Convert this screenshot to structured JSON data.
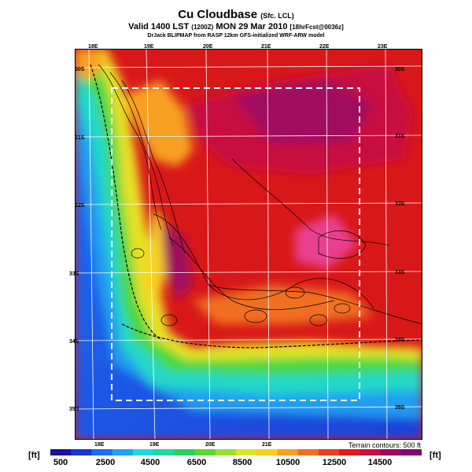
{
  "header": {
    "title": "Cu Cloudbase",
    "title_suffix": "(Sfc. LCL)",
    "valid_line": "Valid 1400 LST",
    "valid_code": "(1200Z)",
    "valid_date": "MON 29 Mar 2010",
    "forecast_code": "[18hrFcst@0036z]",
    "credit": "DrJack BLIPMAP from RASP 12km GFS-initialized WRF-ARW model"
  },
  "map": {
    "top_lon_labels": [
      "18E",
      "19E",
      "20E",
      "21E",
      "22E",
      "23E"
    ],
    "bottom_lon_labels": [
      "18E",
      "19E",
      "20E",
      "21E"
    ],
    "left_lat_labels": [
      "30S",
      "31S",
      "32S",
      "33S",
      "34S",
      "35S"
    ],
    "right_lat_labels": [
      "30S",
      "31S",
      "32S",
      "33S",
      "34S",
      "35S"
    ],
    "terrain_note": "Terrain contours: 500 ft",
    "colors": {
      "low": "#1838d8",
      "mid": "#28d838",
      "high": "#e81818",
      "top": "#a00858"
    }
  },
  "colorbar": {
    "unit_left": "[ft]",
    "unit_right": "[ft]",
    "labels": [
      "500",
      "2500",
      "4500",
      "6500",
      "8500",
      "10500",
      "12500",
      "14500"
    ],
    "colors": [
      "#1c0f9c",
      "#1b35d4",
      "#1f6cf0",
      "#20a4f2",
      "#1ed8e0",
      "#20d8a4",
      "#2ad060",
      "#58d830",
      "#9ae030",
      "#d8e828",
      "#f8d020",
      "#f8a020",
      "#f07020",
      "#e84020",
      "#e01818",
      "#c81040",
      "#a00860",
      "#800870"
    ]
  }
}
